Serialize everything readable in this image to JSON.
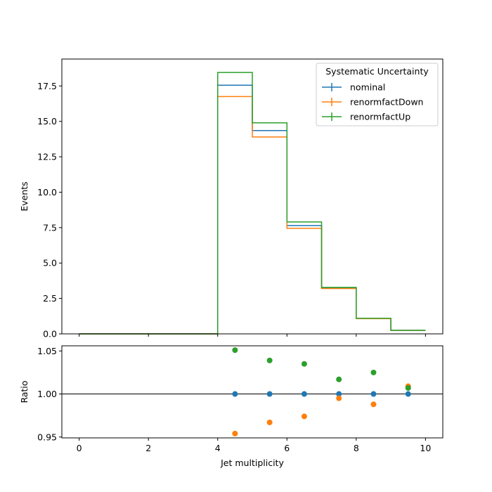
{
  "chart_data": [
    {
      "type": "step",
      "panel": "main",
      "ylabel": "Events",
      "xlabel": "",
      "xlim": [
        -0.5,
        10.5
      ],
      "ylim": [
        0,
        19.4
      ],
      "yticks": [
        0.0,
        2.5,
        5.0,
        7.5,
        10.0,
        12.5,
        15.0,
        17.5
      ],
      "ytick_labels": [
        "0.0",
        "2.5",
        "5.0",
        "7.5",
        "10.0",
        "12.5",
        "15.0",
        "17.5"
      ],
      "bin_edges": [
        0,
        1,
        2,
        3,
        4,
        5,
        6,
        7,
        8,
        9,
        10
      ],
      "series": [
        {
          "name": "nominal",
          "color": "#1f77b4",
          "values": [
            0,
            0,
            0,
            0,
            17.55,
            14.35,
            7.65,
            3.22,
            1.08,
            0.25
          ]
        },
        {
          "name": "renormfactDown",
          "color": "#ff7f0e",
          "values": [
            0,
            0,
            0,
            0,
            16.75,
            13.9,
            7.45,
            3.2,
            1.07,
            0.25
          ]
        },
        {
          "name": "renormfactUp",
          "color": "#2ca02c",
          "values": [
            0,
            0,
            0,
            0,
            18.45,
            14.9,
            7.9,
            3.28,
            1.1,
            0.25
          ]
        }
      ],
      "legend": {
        "title": "Systematic Uncertainty",
        "position": "top-right"
      }
    },
    {
      "type": "scatter",
      "panel": "ratio",
      "ylabel": "Ratio",
      "xlabel": "Jet multiplicity",
      "xlim": [
        -0.5,
        10.5
      ],
      "ylim": [
        0.949,
        1.056
      ],
      "yticks": [
        0.95,
        1.0,
        1.05
      ],
      "ytick_labels": [
        "0.95",
        "1.00",
        "1.05"
      ],
      "xticks": [
        0,
        2,
        4,
        6,
        8,
        10
      ],
      "xtick_labels": [
        "0",
        "2",
        "4",
        "6",
        "8",
        "10"
      ],
      "reference_line": 1.0,
      "x": [
        4.5,
        5.5,
        6.5,
        7.5,
        8.5,
        9.5
      ],
      "series": [
        {
          "name": "nominal",
          "color": "#1f77b4",
          "values": [
            1.0,
            1.0,
            1.0,
            1.0,
            1.0,
            1.0
          ]
        },
        {
          "name": "renormfactDown",
          "color": "#ff7f0e",
          "values": [
            0.954,
            0.967,
            0.974,
            0.995,
            0.988,
            1.009
          ]
        },
        {
          "name": "renormfactUp",
          "color": "#2ca02c",
          "values": [
            1.051,
            1.039,
            1.035,
            1.017,
            1.025,
            1.007
          ]
        }
      ]
    }
  ]
}
